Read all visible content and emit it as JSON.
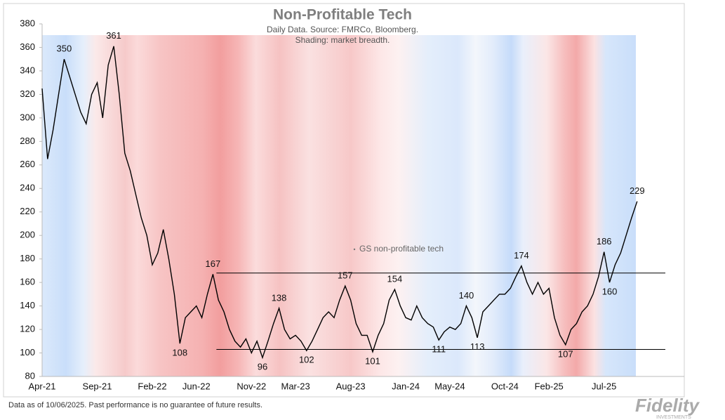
{
  "chart_data": {
    "type": "line",
    "title": "Non-Profitable Tech",
    "subtitle": [
      "Daily Data. Source: FMRCo, Bloomberg.",
      "Shading: market breadth."
    ],
    "categories": [
      "Apr-21",
      null,
      null,
      null,
      null,
      null,
      null,
      null,
      null,
      null,
      "Sep-21",
      null,
      null,
      null,
      null,
      null,
      null,
      null,
      null,
      null,
      "Feb-22",
      null,
      null,
      null,
      null,
      null,
      null,
      null,
      "Jun-22",
      null,
      null,
      null,
      null,
      null,
      null,
      null,
      null,
      null,
      "Nov-22",
      null,
      null,
      null,
      null,
      null,
      null,
      null,
      "Mar-23",
      null,
      null,
      null,
      null,
      null,
      null,
      null,
      null,
      null,
      "Aug-23",
      null,
      null,
      null,
      null,
      null,
      null,
      null,
      null,
      null,
      "Jan-24",
      null,
      null,
      null,
      null,
      null,
      null,
      null,
      "May-24",
      null,
      null,
      null,
      null,
      null,
      null,
      null,
      null,
      null,
      "Oct-24",
      null,
      null,
      null,
      null,
      null,
      null,
      null,
      "Feb-25",
      null,
      null,
      null,
      null,
      null,
      null,
      null,
      null,
      null,
      "Jul-25",
      null,
      null,
      null,
      null,
      null,
      null
    ],
    "series": [
      {
        "name": "GS non-profitable tech",
        "color": "#000000",
        "values": [
          325,
          265,
          290,
          320,
          350,
          335,
          320,
          305,
          295,
          320,
          330,
          300,
          345,
          361,
          320,
          270,
          255,
          235,
          215,
          200,
          175,
          185,
          205,
          180,
          150,
          108,
          130,
          135,
          140,
          130,
          150,
          167,
          145,
          135,
          120,
          110,
          105,
          112,
          100,
          110,
          96,
          110,
          125,
          138,
          120,
          112,
          115,
          110,
          102,
          110,
          120,
          130,
          135,
          130,
          145,
          157,
          145,
          125,
          115,
          115,
          101,
          115,
          125,
          145,
          154,
          140,
          130,
          128,
          140,
          130,
          125,
          122,
          111,
          118,
          122,
          120,
          125,
          140,
          130,
          113,
          135,
          140,
          145,
          150,
          150,
          155,
          165,
          174,
          160,
          150,
          160,
          150,
          155,
          130,
          115,
          107,
          120,
          125,
          135,
          140,
          150,
          165,
          186,
          160,
          175,
          185,
          200,
          215,
          229
        ],
        "value_labels": [
          null,
          null,
          null,
          null,
          "350",
          null,
          null,
          null,
          null,
          null,
          null,
          null,
          null,
          "361",
          null,
          null,
          null,
          null,
          null,
          null,
          null,
          null,
          null,
          null,
          null,
          "108",
          null,
          null,
          null,
          null,
          null,
          "167",
          null,
          null,
          null,
          null,
          null,
          null,
          null,
          null,
          "96",
          null,
          null,
          "138",
          null,
          null,
          null,
          null,
          "102",
          null,
          null,
          null,
          null,
          null,
          null,
          "157",
          null,
          null,
          null,
          null,
          "101",
          null,
          null,
          null,
          "154",
          null,
          null,
          null,
          null,
          null,
          null,
          null,
          "111",
          null,
          null,
          null,
          null,
          "140",
          null,
          "113",
          null,
          null,
          null,
          null,
          null,
          null,
          null,
          "174",
          null,
          null,
          null,
          null,
          null,
          null,
          null,
          "107",
          null,
          null,
          null,
          null,
          null,
          null,
          "186",
          "160",
          null,
          null,
          null,
          null,
          "229"
        ]
      }
    ],
    "hlines": [
      168,
      103
    ],
    "ylim": [
      80,
      380
    ],
    "yticks": [
      80,
      100,
      120,
      140,
      160,
      180,
      200,
      220,
      240,
      260,
      280,
      300,
      320,
      340,
      360,
      380
    ],
    "footer": "Data as of 10/06/2025. Past performance is no guarantee of future results.",
    "logo": "Fidelity",
    "logo_sub": "INVESTMENTS"
  }
}
